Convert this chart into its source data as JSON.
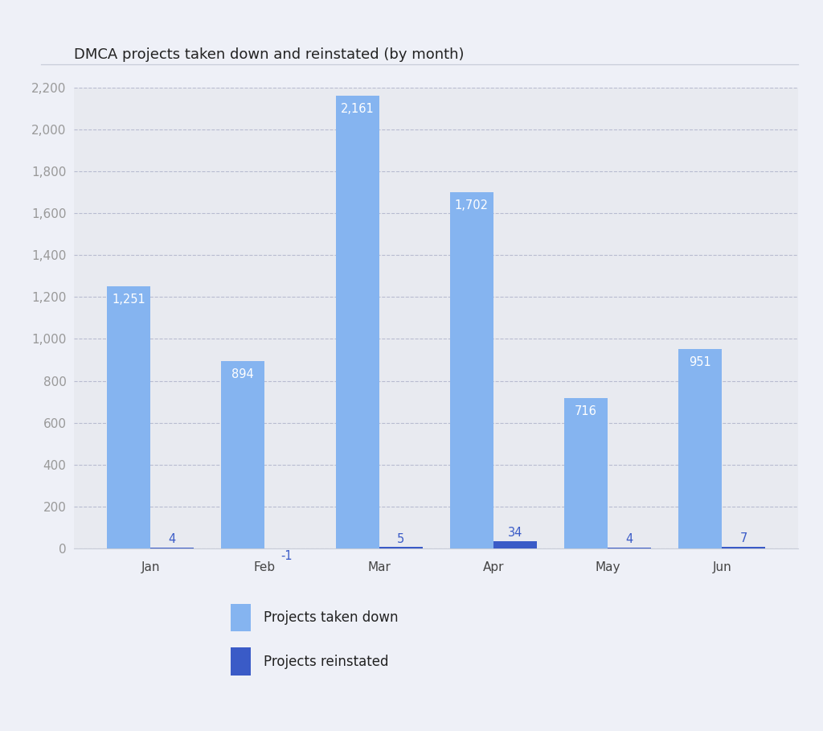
{
  "title": "DMCA projects taken down and reinstated (by month)",
  "months": [
    "Jan",
    "Feb",
    "Mar",
    "Apr",
    "May",
    "Jun"
  ],
  "taken_down": [
    1251,
    894,
    2161,
    1702,
    716,
    951
  ],
  "reinstated": [
    4,
    -1,
    5,
    34,
    4,
    7
  ],
  "taken_down_color": "#85b4f0",
  "reinstated_color": "#3a5bc7",
  "plot_bg_color": "#e8eaf0",
  "outer_bg_color": "#eef0f7",
  "grid_color": "#b8bcd0",
  "spine_color": "#c8ccd8",
  "ytick_color": "#999999",
  "xtick_color": "#444444",
  "title_color": "#222222",
  "label_color": "#222222",
  "bar_label_color_light": "#ffffff",
  "bar_label_color_dark": "#3a5bc7",
  "ylim": [
    0,
    2200
  ],
  "yticks": [
    0,
    200,
    400,
    600,
    800,
    1000,
    1200,
    1400,
    1600,
    1800,
    2000,
    2200
  ],
  "bar_width": 0.38,
  "label_taken_down": "Projects taken down",
  "label_reinstated": "Projects reinstated",
  "title_fontsize": 13,
  "tick_fontsize": 11,
  "label_fontsize": 12
}
